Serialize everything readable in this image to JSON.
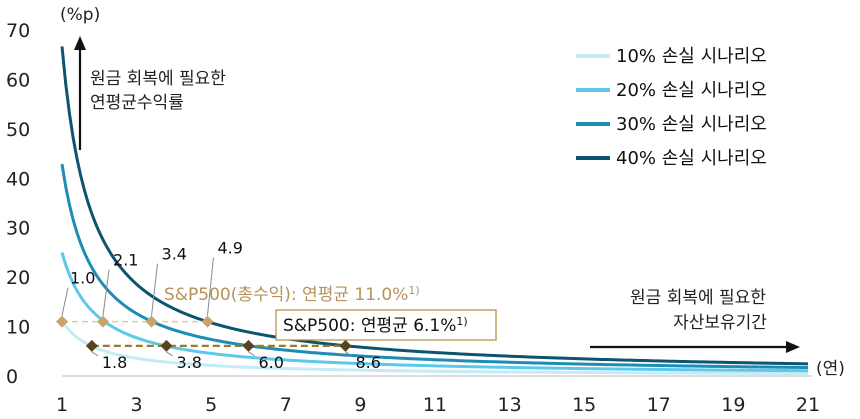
{
  "chart_data": {
    "type": "line",
    "y_unit_label": "(%p)",
    "x_unit_label": "(연)",
    "xlim": [
      1,
      21
    ],
    "ylim": [
      0,
      70
    ],
    "x_ticks": [
      "1",
      "3",
      "5",
      "7",
      "9",
      "11",
      "13",
      "15",
      "17",
      "19",
      "21"
    ],
    "y_ticks": [
      "0",
      "10",
      "20",
      "30",
      "40",
      "50",
      "60",
      "70"
    ],
    "series": [
      {
        "name": "10% 손실 시나리오",
        "loss": 0.1,
        "color": "#c4ecf7",
        "x": [
          1,
          1.5,
          2,
          3,
          4,
          5,
          6,
          8,
          10,
          13,
          16,
          21
        ],
        "y": [
          11.1,
          7.3,
          5.4,
          3.6,
          2.7,
          2.1,
          1.8,
          1.3,
          1.1,
          0.8,
          0.7,
          0.5
        ]
      },
      {
        "name": "20% 손실 시나리오",
        "loss": 0.2,
        "color": "#5cc8ec",
        "x": [
          1,
          1.5,
          2,
          3,
          4,
          5,
          6,
          8,
          10,
          13,
          16,
          21
        ],
        "y": [
          25.0,
          16.0,
          11.8,
          7.7,
          5.7,
          4.6,
          3.8,
          2.8,
          2.3,
          1.7,
          1.4,
          1.1
        ]
      },
      {
        "name": "30% 손실 시나리오",
        "loss": 0.3,
        "color": "#1e8db5",
        "x": [
          1,
          1.5,
          2,
          3,
          4,
          5,
          6,
          8,
          10,
          13,
          16,
          21
        ],
        "y": [
          42.9,
          26.8,
          19.5,
          12.6,
          9.3,
          7.4,
          6.1,
          4.6,
          3.6,
          2.8,
          2.3,
          1.7
        ]
      },
      {
        "name": "40% 손실 시나리오",
        "loss": 0.4,
        "color": "#0d5470",
        "x": [
          1,
          1.5,
          2,
          3,
          4,
          5,
          6,
          8,
          10,
          13,
          16,
          21
        ],
        "y": [
          66.7,
          40.6,
          29.1,
          18.6,
          13.6,
          10.8,
          8.9,
          6.6,
          5.2,
          4.0,
          3.2,
          2.5
        ]
      }
    ],
    "reference_lines": [
      {
        "name": "S&P500(총수익): 연평균 11.0%",
        "label": "S&P500(총수익): 연평균 11.0%",
        "sup": "1)",
        "y": 11.0,
        "color": "#e6c9a3",
        "marker_color": "#c9a36a",
        "points": [
          1.0,
          2.1,
          3.4,
          4.9
        ],
        "point_labels": [
          "1.0",
          "2.1",
          "3.4",
          "4.9"
        ]
      },
      {
        "name": "S&P500: 연평균 6.1%",
        "label": "S&P500: 연평균 6.1%",
        "sup": "1)",
        "y": 6.1,
        "color": "#9c7a2c",
        "marker_color": "#5a4420",
        "points": [
          1.8,
          3.8,
          6.0,
          8.6
        ],
        "point_labels": [
          "1.8",
          "3.8",
          "6.0",
          "8.6"
        ]
      }
    ],
    "annotations": {
      "up_arrow_text": [
        "원금 회복에 필요한",
        "연평균수익률"
      ],
      "right_arrow_text": [
        "원금 회복에 필요한",
        "자산보유기간"
      ]
    }
  }
}
